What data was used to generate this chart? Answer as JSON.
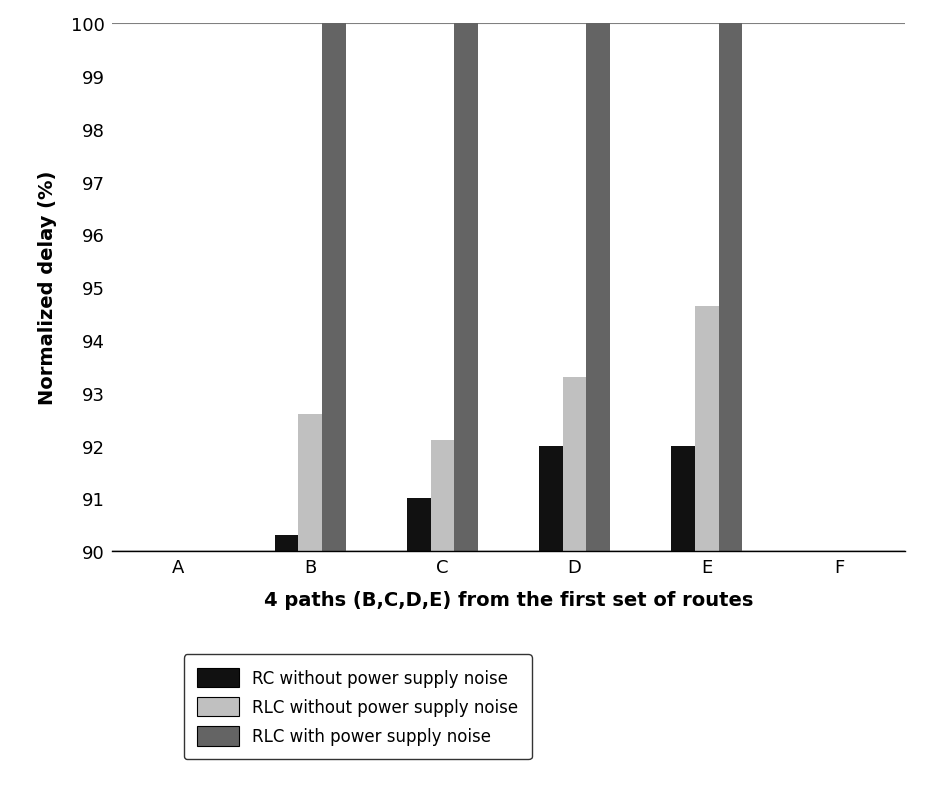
{
  "categories": [
    "A",
    "B",
    "C",
    "D",
    "E",
    "F"
  ],
  "series": {
    "RC without power supply noise": {
      "values": [
        null,
        90.3,
        91.0,
        92.0,
        92.0,
        null
      ],
      "color": "#111111"
    },
    "RLC without power supply noise": {
      "values": [
        null,
        92.6,
        92.1,
        93.3,
        94.65,
        null
      ],
      "color": "#c0c0c0"
    },
    "RLC with power supply noise": {
      "values": [
        null,
        100.0,
        100.0,
        100.0,
        100.0,
        null
      ],
      "color": "#646464"
    }
  },
  "xlabel": "4 paths (B,C,D,E) from the first set of routes",
  "ylabel": "Normalized delay (%)",
  "ylim": [
    90,
    100
  ],
  "yticks": [
    90,
    91,
    92,
    93,
    94,
    95,
    96,
    97,
    98,
    99,
    100
  ],
  "bar_width": 0.18,
  "background_color": "#ffffff",
  "xlabel_fontsize": 14,
  "ylabel_fontsize": 14,
  "tick_fontsize": 13
}
